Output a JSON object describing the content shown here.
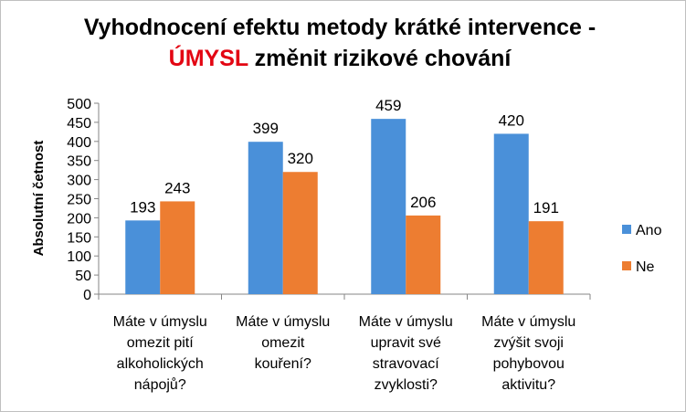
{
  "chart_data": {
    "type": "bar",
    "title_line1": "Vyhodnocení efektu metody krátké intervence -",
    "title_accent": "ÚMYSL",
    "title_line2_rest": " změnit rizikové chování",
    "ylabel": "Absolutní četnost",
    "xlabel": "",
    "ylim": [
      0,
      500
    ],
    "ytick_step": 50,
    "legend_position": "right",
    "categories": [
      [
        "Máte v úmyslu",
        "omezit pití",
        "alkoholických",
        "nápojů?"
      ],
      [
        "Máte v úmyslu",
        "omezit",
        "kouření?"
      ],
      [
        "Máte v úmyslu",
        "upravit své",
        "stravovací",
        "zvyklosti?"
      ],
      [
        "Máte v úmyslu",
        "zvýšit svoji",
        "pohybovou",
        "aktivitu?"
      ]
    ],
    "series": [
      {
        "name": "Ano",
        "color": "#4a90d9",
        "values": [
          193,
          399,
          459,
          420
        ]
      },
      {
        "name": "Ne",
        "color": "#ed7d31",
        "values": [
          243,
          320,
          206,
          191
        ]
      }
    ]
  }
}
